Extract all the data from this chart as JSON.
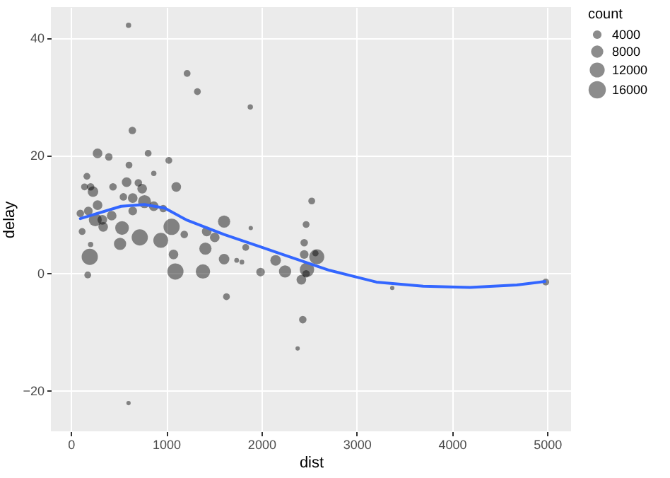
{
  "chart_data": {
    "type": "scatter",
    "xlabel": "dist",
    "ylabel": "delay",
    "legend_title": "count",
    "grid": true,
    "marker": "circle",
    "xlim": [
      -210,
      5250
    ],
    "ylim": [
      -27,
      45.2
    ],
    "xticks": [
      0,
      1000,
      2000,
      3000,
      4000,
      5000
    ],
    "yticks": [
      -20,
      0,
      20,
      40
    ],
    "size_legend": [
      4000,
      8000,
      12000,
      16000
    ],
    "series": [
      {
        "color": "#000000",
        "x": [
          605,
          1220,
          1328,
          1883,
          645,
          280,
          398,
          811,
          1028,
          610,
          870,
          168,
          2528,
          2469,
          1888,
          207,
          143,
          232,
          442,
          585,
          708,
          748,
          1106,
          551,
          649,
          280,
          773,
          870,
          969,
          99,
          183,
          256,
          330,
          428,
          649,
          339,
          537,
          723,
          944,
          1057,
          1190,
          516,
          118,
          207,
          198,
          1077,
          1412,
          1426,
          1510,
          1608,
          1608,
          1097,
          1386,
          1740,
          1795,
          1835,
          1991,
          2149,
          2248,
          177,
          1633,
          2434,
          2380,
          605,
          2449,
          2449,
          2581,
          2567,
          2478,
          2419,
          2469,
          3373,
          4985
        ],
        "values": [
          42.1,
          33.9,
          30.8,
          28.2,
          24.2,
          20.3,
          19.7,
          20.3,
          19.1,
          18.3,
          16.9,
          16.4,
          12.2,
          8.2,
          7.6,
          14.6,
          14.6,
          13.8,
          14.6,
          15.4,
          15.3,
          14.3,
          14.6,
          12.9,
          12.7,
          11.5,
          12.1,
          11.3,
          10.9,
          10.1,
          10.5,
          9.0,
          9.0,
          9.7,
          10.5,
          7.8,
          7.6,
          6.0,
          5.5,
          7.8,
          6.5,
          4.9,
          7.0,
          4.8,
          2.7,
          3.1,
          4.1,
          7.0,
          6.0,
          8.7,
          2.3,
          0.2,
          0.2,
          2.1,
          1.8,
          4.3,
          0.1,
          2.1,
          0.2,
          -0.4,
          -4.1,
          -8.0,
          -12.9,
          -22.2,
          5.1,
          3.1,
          2.7,
          3.3,
          0.5,
          -1.2,
          -0.2,
          -2.6,
          -1.6
        ],
        "sizes": [
          1500,
          2500,
          2500,
          1500,
          3000,
          5000,
          3000,
          2500,
          2500,
          2500,
          1500,
          2500,
          2500,
          2500,
          1000,
          3000,
          2500,
          6000,
          3000,
          5000,
          3000,
          5000,
          5000,
          3000,
          5000,
          5000,
          9000,
          5000,
          3000,
          3000,
          4000,
          9000,
          5000,
          5000,
          4000,
          5000,
          10000,
          14000,
          12000,
          14000,
          3000,
          8000,
          2500,
          1500,
          14000,
          5000,
          8000,
          5000,
          5000,
          8000,
          6000,
          14000,
          11000,
          1200,
          1200,
          2500,
          4000,
          6000,
          8000,
          2500,
          2500,
          3000,
          1000,
          1000,
          3000,
          4000,
          12000,
          2000,
          11000,
          5000,
          3000,
          1000,
          2500
        ]
      },
      {
        "type": "line",
        "marker": "none",
        "color": "#3366ff",
        "x": [
          99,
          527,
          772,
          985,
          1210,
          1608,
          1991,
          2223,
          2714,
          3207,
          3698,
          4189,
          4681,
          4976
        ],
        "values": [
          9.2,
          11.3,
          11.6,
          11.0,
          9.0,
          6.5,
          4.4,
          3.1,
          0.4,
          -1.6,
          -2.3,
          -2.5,
          -2.1,
          -1.5
        ]
      }
    ]
  }
}
